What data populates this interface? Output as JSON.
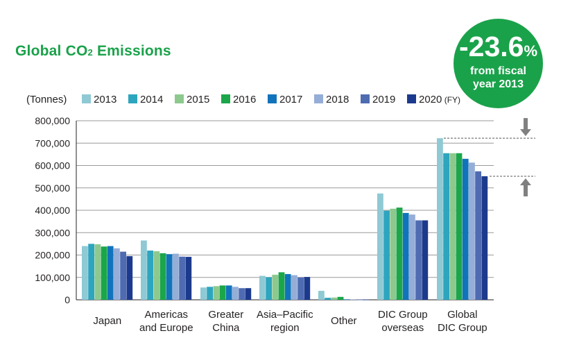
{
  "title_main": "Global CO",
  "title_sub": "2",
  "title_rest": " Emissions",
  "badge": {
    "value": "-23.6",
    "unit": "%",
    "line1": "from fiscal",
    "line2": "year 2013"
  },
  "colors": {
    "title": "#1aa24a",
    "badge_bg": "#1aa24a"
  },
  "legend_fy_suffix": "(FY)",
  "chart_data": {
    "type": "bar",
    "ylabel": "(Tonnes)",
    "ylim": [
      0,
      800000
    ],
    "yticks": [
      "800,000",
      "700,000",
      "600,000",
      "500,000",
      "400,000",
      "300,000",
      "200,000",
      "100,000",
      "0"
    ],
    "grid": true,
    "legend_position": "top",
    "categories": [
      [
        "Japan"
      ],
      [
        "Americas",
        "and Europe"
      ],
      [
        "Greater",
        "China"
      ],
      [
        "Asia–Pacific",
        "region"
      ],
      [
        "Other"
      ],
      [
        "DIC Group",
        "overseas"
      ],
      [
        "Global",
        "DIC Group"
      ]
    ],
    "series": [
      {
        "name": "2013",
        "color": "#8fc9d4",
        "values": [
          240000,
          265000,
          55000,
          107000,
          40000,
          475000,
          722000
        ]
      },
      {
        "name": "2014",
        "color": "#2ea5be",
        "values": [
          250000,
          220000,
          58000,
          101000,
          9000,
          398000,
          655000
        ]
      },
      {
        "name": "2015",
        "color": "#8dc98f",
        "values": [
          248000,
          217000,
          61000,
          112000,
          10000,
          407000,
          655000
        ]
      },
      {
        "name": "2016",
        "color": "#1ba64a",
        "values": [
          238000,
          208000,
          64000,
          123000,
          13000,
          412000,
          655000
        ]
      },
      {
        "name": "2017",
        "color": "#1173bb",
        "values": [
          240000,
          204000,
          64000,
          115000,
          2000,
          388000,
          630000
        ]
      },
      {
        "name": "2018",
        "color": "#95aed7",
        "values": [
          230000,
          206000,
          58000,
          110000,
          2000,
          381000,
          613000
        ]
      },
      {
        "name": "2019",
        "color": "#4f6bb2",
        "values": [
          215000,
          193000,
          52000,
          100000,
          1000,
          355000,
          574000
        ]
      },
      {
        "name": "2020",
        "color": "#1c3a8d",
        "values": [
          195000,
          192000,
          52000,
          102000,
          1000,
          355000,
          552000
        ]
      }
    ]
  }
}
